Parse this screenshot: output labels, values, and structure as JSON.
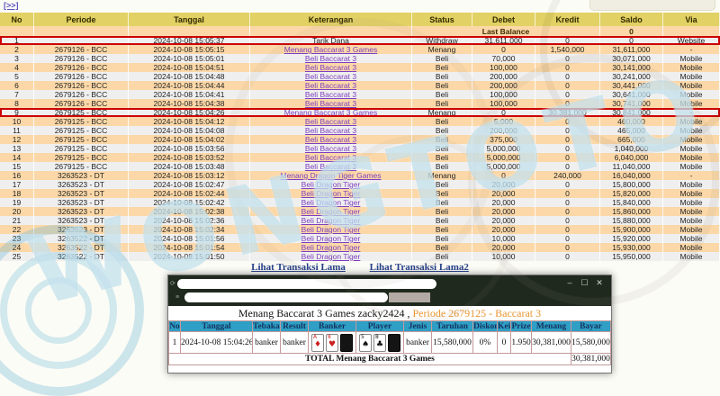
{
  "page": {
    "nav_link": "[>>]",
    "watermark_text": "WONGTOTO"
  },
  "main_table": {
    "headers": [
      "No",
      "Periode",
      "Tanggal",
      "Keterangan",
      "Status",
      "Debet",
      "Kredit",
      "Saldo",
      "Via"
    ],
    "last_balance_label": "Last Balance",
    "last_balance_value": "0",
    "rows": [
      {
        "no": "1",
        "periode": "",
        "tanggal": "2024-10-08 15:05:37",
        "ket": "Tarik Dana",
        "link": false,
        "status": "Withdraw",
        "debet": "31,611,000",
        "kredit": "0",
        "saldo": "0",
        "via": "Website",
        "hl": true
      },
      {
        "no": "2",
        "periode": "2679126 - BCC",
        "tanggal": "2024-10-08 15:05:15",
        "ket": "Menang Baccarat 3 Games",
        "link": true,
        "status": "Menang",
        "debet": "0",
        "kredit": "1,540,000",
        "saldo": "31,611,000",
        "via": "-",
        "hl": false
      },
      {
        "no": "3",
        "periode": "2679126 - BCC",
        "tanggal": "2024-10-08 15:05:01",
        "ket": "Beli Baccarat 3",
        "link": true,
        "status": "Beli",
        "debet": "70,000",
        "kredit": "0",
        "saldo": "30,071,000",
        "via": "Mobile",
        "hl": false
      },
      {
        "no": "4",
        "periode": "2679126 - BCC",
        "tanggal": "2024-10-08 15:04:51",
        "ket": "Beli Baccarat 3",
        "link": true,
        "status": "Beli",
        "debet": "100,000",
        "kredit": "0",
        "saldo": "30,141,000",
        "via": "Mobile",
        "hl": false
      },
      {
        "no": "5",
        "periode": "2679126 - BCC",
        "tanggal": "2024-10-08 15:04:48",
        "ket": "Beli Baccarat 3",
        "link": true,
        "status": "Beli",
        "debet": "200,000",
        "kredit": "0",
        "saldo": "30,241,000",
        "via": "Mobile",
        "hl": false
      },
      {
        "no": "6",
        "periode": "2679126 - BCC",
        "tanggal": "2024-10-08 15:04:44",
        "ket": "Beli Baccarat 3",
        "link": true,
        "status": "Beli",
        "debet": "200,000",
        "kredit": "0",
        "saldo": "30,441,000",
        "via": "Mobile",
        "hl": false
      },
      {
        "no": "7",
        "periode": "2679126 - BCC",
        "tanggal": "2024-10-08 15:04:41",
        "ket": "Beli Baccarat 3",
        "link": true,
        "status": "Beli",
        "debet": "100,000",
        "kredit": "0",
        "saldo": "30,641,000",
        "via": "Mobile",
        "hl": false
      },
      {
        "no": "8",
        "periode": "2679126 - BCC",
        "tanggal": "2024-10-08 15:04:38",
        "ket": "Beli Baccarat 3",
        "link": true,
        "status": "Beli",
        "debet": "100,000",
        "kredit": "0",
        "saldo": "30,741,000",
        "via": "Mobile",
        "hl": false
      },
      {
        "no": "9",
        "periode": "2679125 - BCC",
        "tanggal": "2024-10-08 15:04:26",
        "ket": "Menang Baccarat 3 Games",
        "link": true,
        "status": "Menang",
        "debet": "0",
        "kredit": "30,381,000",
        "saldo": "30,841,000",
        "via": "-",
        "hl": true
      },
      {
        "no": "10",
        "periode": "2679125 - BCC",
        "tanggal": "2024-10-08 15:04:12",
        "ket": "Beli Baccarat 3",
        "link": true,
        "status": "Beli",
        "debet": "5,000",
        "kredit": "0",
        "saldo": "460,000",
        "via": "Mobile",
        "hl": false
      },
      {
        "no": "11",
        "periode": "2679125 - BCC",
        "tanggal": "2024-10-08 15:04:08",
        "ket": "Beli Baccarat 3",
        "link": true,
        "status": "Beli",
        "debet": "200,000",
        "kredit": "0",
        "saldo": "465,000",
        "via": "Mobile",
        "hl": false
      },
      {
        "no": "12",
        "periode": "2679125 - BCC",
        "tanggal": "2024-10-08 15:04:02",
        "ket": "Beli Baccarat 3",
        "link": true,
        "status": "Beli",
        "debet": "375,000",
        "kredit": "0",
        "saldo": "665,000",
        "via": "Mobile",
        "hl": false
      },
      {
        "no": "13",
        "periode": "2679125 - BCC",
        "tanggal": "2024-10-08 15:03:56",
        "ket": "Beli Baccarat 3",
        "link": true,
        "status": "Beli",
        "debet": "5,000,000",
        "kredit": "0",
        "saldo": "1,040,000",
        "via": "Mobile",
        "hl": false
      },
      {
        "no": "14",
        "periode": "2679125 - BCC",
        "tanggal": "2024-10-08 15:03:52",
        "ket": "Beli Baccarat 3",
        "link": true,
        "status": "Beli",
        "debet": "5,000,000",
        "kredit": "0",
        "saldo": "6,040,000",
        "via": "Mobile",
        "hl": false
      },
      {
        "no": "15",
        "periode": "2679125 - BCC",
        "tanggal": "2024-10-08 15:03:48",
        "ket": "Beli Baccarat 3",
        "link": true,
        "status": "Beli",
        "debet": "5,000,000",
        "kredit": "0",
        "saldo": "11,040,000",
        "via": "Mobile",
        "hl": false
      },
      {
        "no": "16",
        "periode": "3263523 - DT",
        "tanggal": "2024-10-08 15:03:12",
        "ket": "Menang Dragon Tiger Games",
        "link": true,
        "status": "Menang",
        "debet": "0",
        "kredit": "240,000",
        "saldo": "16,040,000",
        "via": "-",
        "hl": false
      },
      {
        "no": "17",
        "periode": "3263523 - DT",
        "tanggal": "2024-10-08 15:02:47",
        "ket": "Beli Dragon Tiger",
        "link": true,
        "status": "Beli",
        "debet": "20,000",
        "kredit": "0",
        "saldo": "15,800,000",
        "via": "Mobile",
        "hl": false
      },
      {
        "no": "18",
        "periode": "3263523 - DT",
        "tanggal": "2024-10-08 15:02:44",
        "ket": "Beli Dragon Tiger",
        "link": true,
        "status": "Beli",
        "debet": "20,000",
        "kredit": "0",
        "saldo": "15,820,000",
        "via": "Mobile",
        "hl": false
      },
      {
        "no": "19",
        "periode": "3263523 - DT",
        "tanggal": "2024-10-08 15:02:42",
        "ket": "Beli Dragon Tiger",
        "link": true,
        "status": "Beli",
        "debet": "20,000",
        "kredit": "0",
        "saldo": "15,840,000",
        "via": "Mobile",
        "hl": false
      },
      {
        "no": "20",
        "periode": "3263523 - DT",
        "tanggal": "2024-10-08 15:02:38",
        "ket": "Beli Dragon Tiger",
        "link": true,
        "status": "Beli",
        "debet": "20,000",
        "kredit": "0",
        "saldo": "15,860,000",
        "via": "Mobile",
        "hl": false
      },
      {
        "no": "21",
        "periode": "3263523 - DT",
        "tanggal": "2024-10-08 15:02:36",
        "ket": "Beli Dragon Tiger",
        "link": true,
        "status": "Beli",
        "debet": "20,000",
        "kredit": "0",
        "saldo": "15,880,000",
        "via": "Mobile",
        "hl": false
      },
      {
        "no": "22",
        "periode": "3263523 - DT",
        "tanggal": "2024-10-08 15:02:34",
        "ket": "Beli Dragon Tiger",
        "link": true,
        "status": "Beli",
        "debet": "20,000",
        "kredit": "0",
        "saldo": "15,900,000",
        "via": "Mobile",
        "hl": false
      },
      {
        "no": "23",
        "periode": "3263522 - DT",
        "tanggal": "2024-10-08 15:01:56",
        "ket": "Beli Dragon Tiger",
        "link": true,
        "status": "Beli",
        "debet": "10,000",
        "kredit": "0",
        "saldo": "15,920,000",
        "via": "Mobile",
        "hl": false
      },
      {
        "no": "24",
        "periode": "3263522 - DT",
        "tanggal": "2024-10-08 15:01:54",
        "ket": "Beli Dragon Tiger",
        "link": true,
        "status": "Beli",
        "debet": "20,000",
        "kredit": "0",
        "saldo": "15,930,000",
        "via": "Mobile",
        "hl": false
      },
      {
        "no": "25",
        "periode": "3263522 - DT",
        "tanggal": "2024-10-08 15:01:50",
        "ket": "Beli Dragon Tiger",
        "link": true,
        "status": "Beli",
        "debet": "10,000",
        "kredit": "0",
        "saldo": "15,950,000",
        "via": "Mobile",
        "hl": false
      }
    ]
  },
  "footer_links": {
    "lama": "Lihat Transaksi Lama",
    "lama2": "Lihat Transaksi Lama2"
  },
  "popup": {
    "title_main": "Menang Baccarat 3 Games zacky2424 ,",
    "title_periode": " Periode 2679125 - Baccarat 3",
    "window_controls": {
      "minimize": "–",
      "maximize": "☐",
      "close": "✕"
    },
    "table": {
      "headers": [
        "No",
        "Tanggal",
        "Tebakan",
        "Result",
        "Banker",
        "Player",
        "Jenis",
        "Taruhan",
        "Diskon",
        "Kei",
        "Prize",
        "Menang",
        "Bayar"
      ],
      "row": {
        "no": "1",
        "tanggal": "2024-10-08 15:04:26",
        "tebakan": "banker",
        "result": "banker",
        "banker_cards": [
          {
            "rank": "A",
            "suit": "♦",
            "red": true,
            "back": false
          },
          {
            "rank": "8",
            "suit": "♥",
            "red": true,
            "back": false
          },
          {
            "rank": "",
            "suit": "",
            "red": false,
            "back": true
          }
        ],
        "player_cards": [
          {
            "rank": "5",
            "suit": "♠",
            "red": false,
            "back": false
          },
          {
            "rank": "8",
            "suit": "♣",
            "red": false,
            "back": false
          },
          {
            "rank": "",
            "suit": "",
            "red": false,
            "back": true
          }
        ],
        "jenis": "banker",
        "taruhan": "15,580,000",
        "diskon": "0%",
        "kei": "0",
        "prize": "1.950",
        "menang": "30,381,000",
        "bayar": "15,580,000"
      },
      "total_label": "TOTAL  Menang Baccarat 3 Games",
      "total_value": "30,381,000"
    }
  },
  "colors": {
    "accent_red": "#cc0000",
    "header_bg": "#e2d164",
    "row_alt_peach": "#fcd8a8",
    "row_alt_grey": "#efefef",
    "link_purple": "#7d3fc1",
    "value_blue": "#4743cf",
    "status_color": "#c2633c",
    "popup_header_bg": "#2f9fc6",
    "popup_border": "#c49a9a",
    "title_orange": "#e8952f",
    "watermark_blue": "#8cc5dd"
  }
}
